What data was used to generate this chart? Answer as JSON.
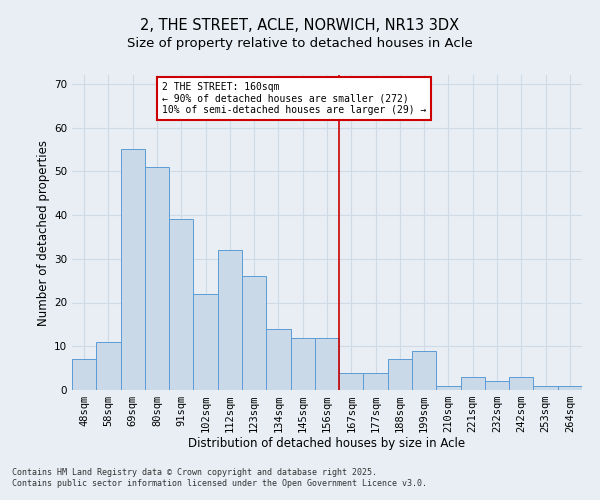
{
  "title1": "2, THE STREET, ACLE, NORWICH, NR13 3DX",
  "title2": "Size of property relative to detached houses in Acle",
  "xlabel": "Distribution of detached houses by size in Acle",
  "ylabel": "Number of detached properties",
  "categories": [
    "48sqm",
    "58sqm",
    "69sqm",
    "80sqm",
    "91sqm",
    "102sqm",
    "112sqm",
    "123sqm",
    "134sqm",
    "145sqm",
    "156sqm",
    "167sqm",
    "177sqm",
    "188sqm",
    "199sqm",
    "210sqm",
    "221sqm",
    "232sqm",
    "242sqm",
    "253sqm",
    "264sqm"
  ],
  "values": [
    7,
    11,
    55,
    51,
    39,
    22,
    32,
    26,
    14,
    12,
    12,
    4,
    4,
    7,
    9,
    1,
    3,
    2,
    3,
    1,
    1
  ],
  "bar_color": "#c9d9e8",
  "bar_edge_color": "#5b9bd5",
  "vline_x": 10.5,
  "vline_color": "#cc0000",
  "annotation_text": "2 THE STREET: 160sqm\n← 90% of detached houses are smaller (272)\n10% of semi-detached houses are larger (29) →",
  "annotation_box_color": "#ffffff",
  "annotation_box_edge": "#cc0000",
  "background_color": "#e8eef4",
  "ylim": [
    0,
    72
  ],
  "yticks": [
    0,
    10,
    20,
    30,
    40,
    50,
    60,
    70
  ],
  "footer_text": "Contains HM Land Registry data © Crown copyright and database right 2025.\nContains public sector information licensed under the Open Government Licence v3.0.",
  "grid_color": "#d0dae4",
  "title_fontsize": 10.5,
  "subtitle_fontsize": 9.5,
  "axis_label_fontsize": 8.5,
  "tick_fontsize": 7.5,
  "footer_fontsize": 6.0
}
